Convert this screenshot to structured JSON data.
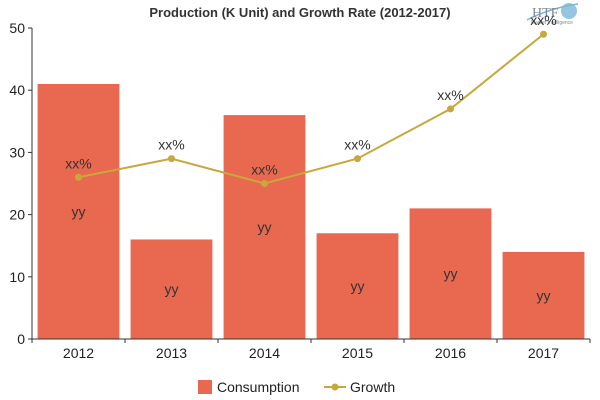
{
  "logo": {
    "text": "HTF",
    "subtext": "Market Intelligence"
  },
  "chart_data": {
    "type": "bar",
    "title": "Production (K Unit) and Growth Rate (2012-2017)",
    "categories": [
      "2012",
      "2013",
      "2014",
      "2015",
      "2016",
      "2017"
    ],
    "ylim": [
      0,
      50
    ],
    "yticks": [
      0,
      10,
      20,
      30,
      40,
      50
    ],
    "grid": false,
    "legend_position": "bottom",
    "series": [
      {
        "name": "Consumption",
        "kind": "bar",
        "color": "#e8694f",
        "values": [
          41,
          16,
          36,
          17,
          21,
          14
        ],
        "labels": [
          "yy",
          "yy",
          "yy",
          "yy",
          "yy",
          "yy"
        ]
      },
      {
        "name": "Growth",
        "kind": "line",
        "color": "#c8a83c",
        "values": [
          26,
          29,
          25,
          29,
          37,
          49
        ],
        "labels": [
          "xx%",
          "xx%",
          "xx%",
          "xx%",
          "xx%",
          "xx%"
        ]
      }
    ]
  }
}
